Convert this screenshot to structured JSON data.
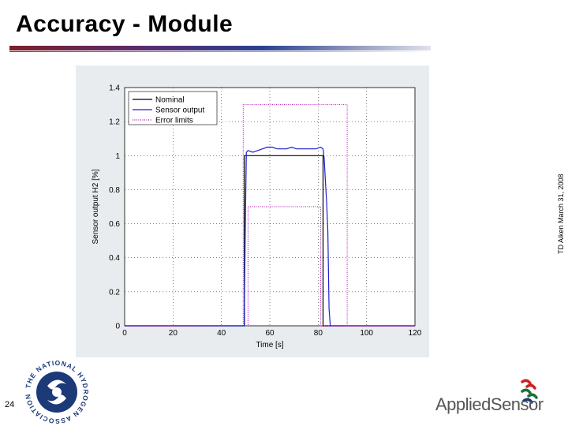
{
  "slide": {
    "title": "Accuracy - Module",
    "page_number": "24",
    "side_note": "TD Aiken March 31, 2008"
  },
  "logos": {
    "nha_ring_text": "THE NATIONAL HYDROGEN ASSOCIATION",
    "applied_sensor": "AppliedSensor"
  },
  "colors": {
    "title_rule_start": "#7b1f2a",
    "title_rule_mid": "#2a3f8f",
    "chart_panel_bg": "#e9ecef",
    "nominal": "#000000",
    "sensor_output": "#1f1fd0",
    "error_limits": "#b000b0",
    "logo_blue": "#1c3a78",
    "logo_red": "#cc2222"
  },
  "chart_data": {
    "type": "line",
    "xlabel": "Time [s]",
    "ylabel": "Sensor output H2 [%]",
    "xlim": [
      0,
      120
    ],
    "ylim": [
      0,
      1.4
    ],
    "xticks": [
      0,
      20,
      40,
      60,
      80,
      100,
      120
    ],
    "yticks": [
      0,
      0.2,
      0.4,
      0.6,
      0.8,
      1,
      1.2,
      1.4
    ],
    "grid": true,
    "legend_position": "top-left",
    "series": [
      {
        "name": "Nominal",
        "style": "solid",
        "color": "#000000",
        "x": [
          0,
          49.5,
          49.5,
          82,
          82,
          120
        ],
        "y": [
          0,
          0,
          1.0,
          1.0,
          0,
          0
        ]
      },
      {
        "name": "Sensor output",
        "style": "solid",
        "color": "#1f1fd0",
        "x": [
          0,
          49.4,
          49.7,
          50.0,
          50.3,
          51,
          53,
          55,
          57,
          59,
          61,
          63,
          65,
          67,
          69,
          71,
          73,
          75,
          77,
          79,
          81,
          82,
          82.5,
          83,
          83.5,
          84,
          84.5,
          85,
          90,
          120
        ],
        "y": [
          0,
          0,
          0.35,
          0.7,
          1.02,
          1.03,
          1.02,
          1.03,
          1.04,
          1.05,
          1.05,
          1.04,
          1.04,
          1.04,
          1.05,
          1.04,
          1.04,
          1.04,
          1.04,
          1.04,
          1.05,
          1.04,
          0.98,
          0.85,
          0.72,
          0.55,
          0.1,
          0.0,
          0,
          0
        ]
      },
      {
        "name": "Error limits",
        "style": "dotted",
        "color": "#b000b0",
        "x": [
          0,
          49,
          49,
          92,
          92,
          120
        ],
        "y": [
          0,
          0,
          1.3,
          1.3,
          0,
          0
        ]
      },
      {
        "name": "Error limits",
        "style": "dotted",
        "color": "#b000b0",
        "x": [
          0,
          51,
          51,
          81,
          81,
          120
        ],
        "y": [
          0,
          0,
          0.7,
          0.7,
          0,
          0
        ]
      }
    ],
    "legend": [
      "Nominal",
      "Sensor output",
      "Error limits"
    ]
  }
}
